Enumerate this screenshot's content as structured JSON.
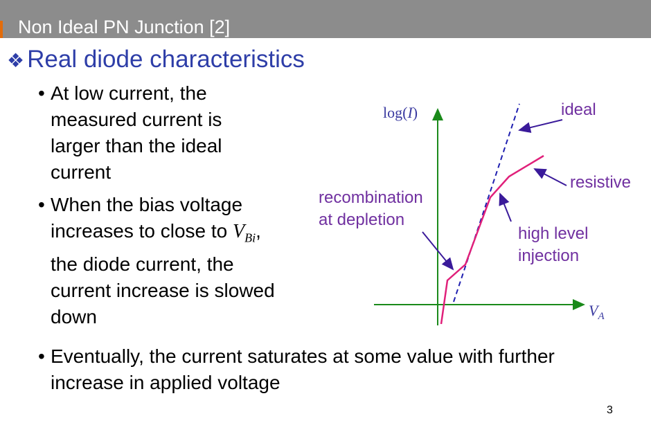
{
  "header": {
    "title": "Non Ideal PN Junction [2]"
  },
  "heading": {
    "bullet": "❖",
    "text": "Real diode characteristics"
  },
  "bullets": [
    {
      "marker": "•",
      "text": "At low current, the measured current is larger than the ideal current"
    },
    {
      "marker": "•",
      "parts": [
        "When the bias voltage increases to close to ",
        "V",
        "Bi",
        ", the diode current, the current increase is slowed down"
      ]
    },
    {
      "marker": "•",
      "text": "Eventually, the current saturates at some value with further increase in applied voltage"
    }
  ],
  "diagram": {
    "y_axis_label": [
      "log(",
      "I",
      ")"
    ],
    "x_axis_label": [
      "V",
      "A"
    ],
    "labels": {
      "ideal": "ideal",
      "resistive": "resistive",
      "high_level": [
        "high level",
        "injection"
      ],
      "recombination": [
        "recombination",
        "at depletion"
      ]
    }
  },
  "page_number": "3"
}
